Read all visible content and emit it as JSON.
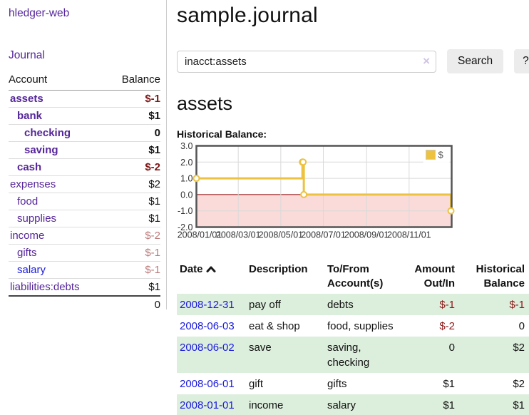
{
  "colors": {
    "link_purple": "#552699",
    "link_blue": "#1b1bdd",
    "negative_strong": "#7c1616",
    "negative_soft": "#bb7a7a",
    "negative_table": "#8b1a1a",
    "row_green": "#dceedc",
    "chart_line_gold": "#edc240",
    "chart_negative_fill": "#fbdada",
    "chart_zero_line": "#8b0000"
  },
  "sidebar": {
    "brand": "hledger-web",
    "journal_link": "Journal",
    "accounts_table": {
      "account_header": "Account",
      "balance_header": "Balance",
      "rows": [
        {
          "name": "assets",
          "balance": "$-1",
          "indent": 1,
          "bold": true,
          "negative": "strong"
        },
        {
          "name": "bank",
          "balance": "$1",
          "indent": 2,
          "bold": true
        },
        {
          "name": "checking",
          "balance": "0",
          "indent": 3,
          "bold": true
        },
        {
          "name": "saving",
          "balance": "$1",
          "indent": 3,
          "bold": true
        },
        {
          "name": "cash",
          "balance": "$-2",
          "indent": 2,
          "bold": true,
          "negative": "strong"
        },
        {
          "name": "expenses",
          "balance": "$2",
          "indent": 1
        },
        {
          "name": "food",
          "balance": "$1",
          "indent": 2
        },
        {
          "name": "supplies",
          "balance": "$1",
          "indent": 2
        },
        {
          "name": "income",
          "balance": "$-2",
          "indent": 1,
          "negative": "soft"
        },
        {
          "name": "gifts",
          "balance": "$-1",
          "indent": 2,
          "negative": "soft"
        },
        {
          "name": "salary",
          "balance": "$-1",
          "indent": 2,
          "negative": "soft",
          "link_color": "blue"
        },
        {
          "name": "liabilities:debts",
          "balance": "$1",
          "indent": 1
        }
      ],
      "total": "0"
    }
  },
  "header": {
    "title": "sample.journal"
  },
  "search": {
    "value": "inacct:assets",
    "clear_icon": "×",
    "search_label": "Search",
    "help_label": "?"
  },
  "account_page": {
    "heading": "assets",
    "chart_label": "Historical Balance:"
  },
  "chart_data": {
    "type": "line",
    "step": true,
    "title": "Historical Balance:",
    "ylim": [
      -2,
      3
    ],
    "y_ticks": [
      3.0,
      2.0,
      1.0,
      0.0,
      -1.0,
      -2.0
    ],
    "x_start": "2008-01-01",
    "x_end": "2009-01-01",
    "x_ticks": [
      {
        "label": "2008/01/01",
        "date": "2008-01-01"
      },
      {
        "label": "2008/03/01",
        "date": "2008-03-01"
      },
      {
        "label": "2008/05/01",
        "date": "2008-05-01"
      },
      {
        "label": "2008/07/01",
        "date": "2008-07-01"
      },
      {
        "label": "2008/09/01",
        "date": "2008-09-01"
      },
      {
        "label": "2008/11/01",
        "date": "2008-11-01"
      }
    ],
    "series": [
      {
        "name": "$",
        "color": "#edc240",
        "points": [
          {
            "date": "2008-01-01",
            "value": 1
          },
          {
            "date": "2008-06-01",
            "value": 2
          },
          {
            "date": "2008-06-02",
            "value": 2
          },
          {
            "date": "2008-06-03",
            "value": 0
          },
          {
            "date": "2008-12-31",
            "value": -1
          }
        ]
      }
    ],
    "legend": {
      "label": "$",
      "swatch_color": "#edc240",
      "position": "top-right"
    },
    "grid": true,
    "negative_region_fill": "#fbdada",
    "zero_line_color": "#8b0000"
  },
  "register": {
    "columns": {
      "date": "Date",
      "description": "Description",
      "accounts": "To/From Account(s)",
      "amount": "Amount Out/In",
      "balance": "Historical Balance"
    },
    "sort": "ascending",
    "rows": [
      {
        "date": "2008-12-31",
        "description": "pay off",
        "accounts": "debts",
        "amount": "$-1",
        "amount_negative": true,
        "balance": "$-1",
        "balance_negative": true
      },
      {
        "date": "2008-06-03",
        "description": "eat & shop",
        "accounts": "food, supplies",
        "amount": "$-2",
        "amount_negative": true,
        "balance": "0",
        "balance_negative": false
      },
      {
        "date": "2008-06-02",
        "description": "save",
        "accounts": "saving,\nchecking",
        "amount": "0",
        "amount_negative": false,
        "balance": "$2",
        "balance_negative": false
      },
      {
        "date": "2008-06-01",
        "description": "gift",
        "accounts": "gifts",
        "amount": "$1",
        "amount_negative": false,
        "balance": "$2",
        "balance_negative": false
      },
      {
        "date": "2008-01-01",
        "description": "income",
        "accounts": "salary",
        "amount": "$1",
        "amount_negative": false,
        "balance": "$1",
        "balance_negative": false
      }
    ]
  }
}
